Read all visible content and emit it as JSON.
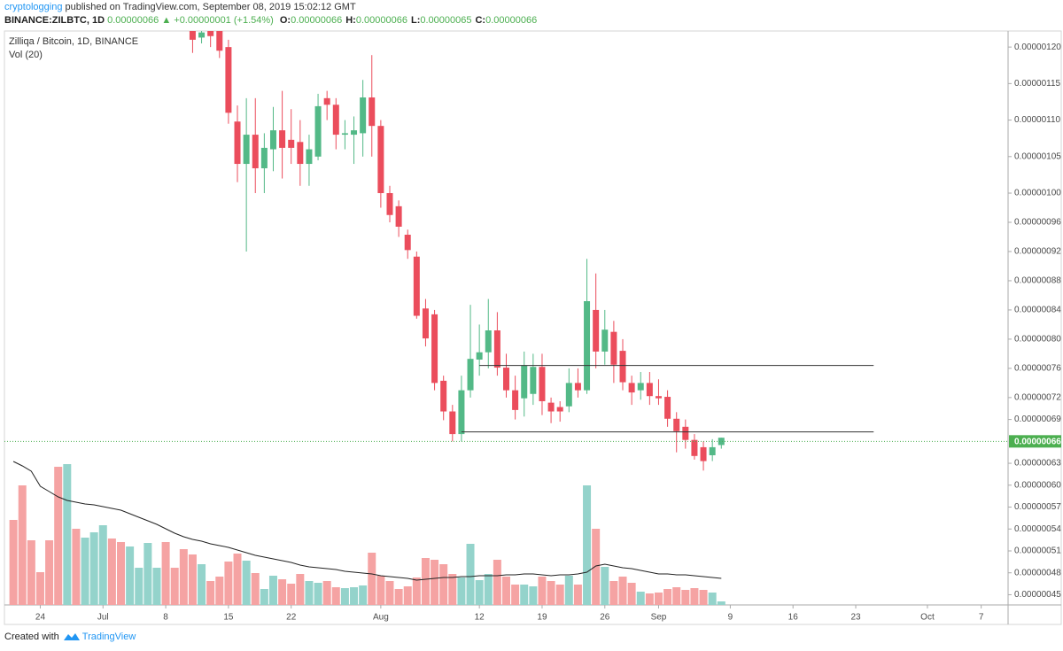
{
  "header": {
    "user": "cryptologging",
    "published": "published on TradingView.com, September 08, 2019 15:02:12 GMT",
    "symbol": "BINANCE:ZILBTC, 1D",
    "last": "0.00000066",
    "arrow": "▲",
    "change": "+0.00000001 (+1.54%)",
    "ohlc": [
      {
        "key": "O:",
        "value": "0.00000066"
      },
      {
        "key": "H:",
        "value": "0.00000066"
      },
      {
        "key": "L:",
        "value": "0.00000065"
      },
      {
        "key": "C:",
        "value": "0.00000066"
      }
    ]
  },
  "footer": {
    "text": "Created with",
    "brand": "TradingView"
  },
  "chart_data": {
    "type": "candlestick",
    "title": "Zilliqa / Bitcoin, 1D, BINANCE",
    "volume_label": "Vol (20)",
    "up_color": "#53b987",
    "down_color": "#eb4d5c",
    "volume_up_color": "#94d3cb",
    "volume_down_color": "#f5a3a3",
    "volume_ma_color": "#222222",
    "grid": false,
    "x": [
      "2019-06-21",
      "2019-06-22",
      "2019-06-23",
      "2019-06-24",
      "2019-06-25",
      "2019-06-26",
      "2019-06-27",
      "2019-06-28",
      "2019-06-29",
      "2019-06-30",
      "2019-07-01",
      "2019-07-02",
      "2019-07-03",
      "2019-07-04",
      "2019-07-05",
      "2019-07-06",
      "2019-07-07",
      "2019-07-08",
      "2019-07-09",
      "2019-07-10",
      "2019-07-11",
      "2019-07-12",
      "2019-07-13",
      "2019-07-14",
      "2019-07-15",
      "2019-07-16",
      "2019-07-17",
      "2019-07-18",
      "2019-07-19",
      "2019-07-20",
      "2019-07-21",
      "2019-07-22",
      "2019-07-23",
      "2019-07-24",
      "2019-07-25",
      "2019-07-26",
      "2019-07-27",
      "2019-07-28",
      "2019-07-29",
      "2019-07-30",
      "2019-07-31",
      "2019-08-01",
      "2019-08-02",
      "2019-08-03",
      "2019-08-04",
      "2019-08-05",
      "2019-08-06",
      "2019-08-07",
      "2019-08-08",
      "2019-08-09",
      "2019-08-10",
      "2019-08-11",
      "2019-08-12",
      "2019-08-13",
      "2019-08-14",
      "2019-08-15",
      "2019-08-16",
      "2019-08-17",
      "2019-08-18",
      "2019-08-19",
      "2019-08-20",
      "2019-08-21",
      "2019-08-22",
      "2019-08-23",
      "2019-08-24",
      "2019-08-25",
      "2019-08-26",
      "2019-08-27",
      "2019-08-28",
      "2019-08-29",
      "2019-08-30",
      "2019-08-31",
      "2019-09-01",
      "2019-09-02",
      "2019-09-03",
      "2019-09-04",
      "2019-09-05",
      "2019-09-06",
      "2019-09-07",
      "2019-09-08"
    ],
    "open": [
      null,
      null,
      null,
      null,
      null,
      null,
      null,
      null,
      null,
      null,
      null,
      null,
      null,
      null,
      null,
      null,
      null,
      null,
      null,
      null,
      1.23e-06,
      1.213e-06,
      1.225e-06,
      1.23e-06,
      1.2e-06,
      1.098e-06,
      1.04e-06,
      1.08e-06,
      1.034e-06,
      1.06e-06,
      1.086e-06,
      1.073e-06,
      1.07e-06,
      1.04e-06,
      1.05e-06,
      1.13e-06,
      1.121e-06,
      1.08e-06,
      1.08e-06,
      1.082e-06,
      1.131e-06,
      1.092e-06,
      1e-06,
      9.82e-07,
      9.43e-07,
      9.13e-07,
      8.42e-07,
      8.34e-07,
      7.43e-07,
      7.01e-07,
      6.7e-07,
      7.3e-07,
      7.72e-07,
      7.82e-07,
      8.12e-07,
      7.61e-07,
      7.3e-07,
      7.19e-07,
      7.25e-07,
      7.62e-07,
      7.13e-07,
      7.07e-07,
      7.08e-07,
      7.4e-07,
      7.3e-07,
      8.4e-07,
      7.83e-07,
      8.1e-07,
      7.84e-07,
      7.4e-07,
      7.3e-07,
      7.4e-07,
      7.22e-07,
      7.21e-07,
      6.91e-07,
      6.8e-07,
      6.62e-07,
      6.52e-07,
      6.41e-07,
      6.55e-07
    ],
    "high": [
      null,
      null,
      null,
      null,
      null,
      null,
      null,
      null,
      null,
      null,
      null,
      null,
      null,
      null,
      null,
      null,
      null,
      null,
      null,
      null,
      1.235e-06,
      1.23e-06,
      1.24e-06,
      1.24e-06,
      1.21e-06,
      1.12e-06,
      1.13e-06,
      1.13e-06,
      1.082e-06,
      1.118e-06,
      1.14e-06,
      1.115e-06,
      1.1e-06,
      1.08e-06,
      1.136e-06,
      1.14e-06,
      1.13e-06,
      1.1e-06,
      1.105e-06,
      1.155e-06,
      1.189e-06,
      1.1e-06,
      1.01e-06,
      9.9e-07,
      9.5e-07,
      9.2e-07,
      8.55e-07,
      8.4e-07,
      7.5e-07,
      7.1e-07,
      7.5e-07,
      8.47e-07,
      8.2e-07,
      8.55e-07,
      8.37e-07,
      7.8e-07,
      7.5e-07,
      7.83e-07,
      7.8e-07,
      7.8e-07,
      7.2e-07,
      7.15e-07,
      7.6e-07,
      7.6e-07,
      9.1e-07,
      8.9e-07,
      8.4e-07,
      8.25e-07,
      8e-07,
      7.5e-07,
      7.55e-07,
      7.55e-07,
      7.45e-07,
      7.3e-07,
      7e-07,
      6.9e-07,
      6.7e-07,
      6.6e-07,
      6.63e-07,
      6.65e-07
    ],
    "low": [
      null,
      null,
      null,
      null,
      null,
      null,
      null,
      null,
      null,
      null,
      null,
      null,
      null,
      null,
      null,
      null,
      null,
      null,
      null,
      null,
      1.192e-06,
      1.205e-06,
      1.2e-06,
      1.185e-06,
      1.095e-06,
      1.015e-06,
      9.2e-07,
      1e-06,
      1e-06,
      1.03e-06,
      1.02e-06,
      1.04e-06,
      1.01e-06,
      1.01e-06,
      1.045e-06,
      1.1e-06,
      1.06e-06,
      1.06e-06,
      1.04e-06,
      1.05e-06,
      1.05e-06,
      9.8e-07,
      9.6e-07,
      9.4e-07,
      9.1e-07,
      8.28e-07,
      7.9e-07,
      7.3e-07,
      6.89e-07,
      6.6e-07,
      6.6e-07,
      7.2e-07,
      7.5e-07,
      7.6e-07,
      7.5e-07,
      7.2e-07,
      6.9e-07,
      6.94e-07,
      7.1e-07,
      6.96e-07,
      6.85e-07,
      6.87e-07,
      7e-07,
      7.2e-07,
      7.25e-07,
      7.6e-07,
      7.65e-07,
      7.4e-07,
      7.3e-07,
      7.1e-07,
      7.17e-07,
      7.1e-07,
      7.1e-07,
      6.8e-07,
      6.45e-07,
      6.5e-07,
      6.35e-07,
      6.2e-07,
      6.33e-07,
      6.5e-07
    ],
    "close": [
      null,
      null,
      null,
      null,
      null,
      null,
      null,
      null,
      null,
      null,
      null,
      null,
      null,
      null,
      null,
      null,
      null,
      null,
      null,
      null,
      1.21e-06,
      1.22e-06,
      1.215e-06,
      1.195e-06,
      1.11e-06,
      1.04e-06,
      1.08e-06,
      1.034e-06,
      1.062e-06,
      1.086e-06,
      1.062e-06,
      1.062e-06,
      1.04e-06,
      1.06e-06,
      1.119e-06,
      1.121e-06,
      1.08e-06,
      1.082e-06,
      1.086e-06,
      1.131e-06,
      1.092e-06,
      1e-06,
      9.7e-07,
      9.54e-07,
      9.22e-07,
      8.32e-07,
      8.01e-07,
      7.4e-07,
      7.01e-07,
      6.7e-07,
      7.3e-07,
      7.73e-07,
      7.82e-07,
      8.12e-07,
      7.61e-07,
      7.3e-07,
      7.03e-07,
      7.64e-07,
      7.62e-07,
      7.15e-07,
      7.01e-07,
      7.01e-07,
      7.4e-07,
      7.3e-07,
      8.52e-07,
      7.83e-07,
      8.13e-07,
      7.65e-07,
      7.41e-07,
      7.27e-07,
      7.4e-07,
      7.22e-07,
      7.19e-07,
      6.91e-07,
      6.74e-07,
      6.62e-07,
      6.4e-07,
      6.33e-07,
      6.52e-07,
      6.65e-07
    ],
    "volume": [
      96,
      135,
      73,
      37,
      73,
      156,
      159,
      86,
      76,
      82,
      90,
      75,
      71,
      66,
      42,
      70,
      42,
      71,
      42,
      63,
      57,
      46,
      27,
      32,
      49,
      58,
      50,
      36,
      18,
      33,
      29,
      24,
      35,
      27,
      25,
      27,
      20,
      19,
      20,
      22,
      59,
      33,
      27,
      18,
      21,
      31,
      53,
      51,
      46,
      35,
      31,
      69,
      28,
      35,
      51,
      32,
      23,
      23,
      21,
      32,
      27,
      23,
      33,
      23,
      135,
      86,
      43,
      27,
      32,
      25,
      15,
      13,
      14,
      18,
      20,
      17,
      19,
      17,
      14,
      4
    ],
    "volume_up": [
      false,
      false,
      false,
      false,
      false,
      false,
      true,
      false,
      true,
      true,
      true,
      false,
      false,
      true,
      true,
      true,
      true,
      false,
      false,
      false,
      false,
      true,
      false,
      false,
      false,
      false,
      true,
      false,
      true,
      true,
      false,
      false,
      false,
      true,
      true,
      false,
      false,
      true,
      true,
      true,
      false,
      false,
      false,
      false,
      false,
      false,
      false,
      false,
      false,
      false,
      true,
      true,
      true,
      true,
      false,
      false,
      false,
      true,
      true,
      false,
      false,
      false,
      true,
      false,
      true,
      false,
      true,
      false,
      false,
      false,
      true,
      false,
      false,
      false,
      false,
      false,
      false,
      false,
      true,
      true
    ],
    "volume_ma": [
      162,
      157,
      151,
      134,
      128,
      122,
      118,
      116,
      114,
      113,
      111,
      109,
      107,
      103,
      99,
      95,
      91,
      86,
      81,
      77,
      74,
      72,
      69,
      67,
      65,
      62,
      59,
      56,
      54,
      52,
      50,
      48,
      45,
      43,
      42,
      41,
      40,
      38,
      37,
      36,
      35,
      33,
      32,
      31,
      30,
      28,
      29,
      30,
      31,
      31,
      32,
      32,
      33,
      33,
      33,
      34,
      34,
      35,
      35,
      34,
      33,
      34,
      34,
      35,
      37,
      44,
      46,
      44,
      42,
      41,
      39,
      37,
      35,
      35,
      34,
      34,
      33,
      32,
      31,
      30
    ],
    "volume_lim": [
      0,
      648
    ],
    "xlim": [
      "2019-06-20",
      "2019-10-10"
    ],
    "xticks": [
      {
        "value": "2019-06-24",
        "label": "24"
      },
      {
        "value": "2019-07-01",
        "label": "Jul"
      },
      {
        "value": "2019-07-08",
        "label": "8"
      },
      {
        "value": "2019-07-15",
        "label": "15"
      },
      {
        "value": "2019-07-22",
        "label": "22"
      },
      {
        "value": "2019-08-01",
        "label": "Aug"
      },
      {
        "value": "2019-08-12",
        "label": "12"
      },
      {
        "value": "2019-08-19",
        "label": "19"
      },
      {
        "value": "2019-08-26",
        "label": "26"
      },
      {
        "value": "2019-09-01",
        "label": "Sep"
      },
      {
        "value": "2019-09-09",
        "label": "9"
      },
      {
        "value": "2019-09-16",
        "label": "16"
      },
      {
        "value": "2019-09-23",
        "label": "23"
      },
      {
        "value": "2019-10-01",
        "label": "Oct"
      },
      {
        "value": "2019-10-07",
        "label": "7"
      }
    ],
    "ylim": [
      4.36e-07,
      1.222e-06
    ],
    "yticks": [
      {
        "value": 1.2e-06,
        "label": "0.00000120"
      },
      {
        "value": 1.15e-06,
        "label": "0.00000115"
      },
      {
        "value": 1.1e-06,
        "label": "0.00000110"
      },
      {
        "value": 1.05e-06,
        "label": "0.00000105"
      },
      {
        "value": 1e-06,
        "label": "0.00000100"
      },
      {
        "value": 9.6e-07,
        "label": "0.00000096"
      },
      {
        "value": 9.2e-07,
        "label": "0.00000092"
      },
      {
        "value": 8.8e-07,
        "label": "0.00000088"
      },
      {
        "value": 8.4e-07,
        "label": "0.00000084"
      },
      {
        "value": 8e-07,
        "label": "0.00000080"
      },
      {
        "value": 7.6e-07,
        "label": "0.00000076"
      },
      {
        "value": 7.2e-07,
        "label": "0.00000072"
      },
      {
        "value": 6.9e-07,
        "label": "0.00000069"
      },
      {
        "value": 6.3e-07,
        "label": "0.00000063"
      },
      {
        "value": 6e-07,
        "label": "0.00000060"
      },
      {
        "value": 5.7e-07,
        "label": "0.00000057"
      },
      {
        "value": 5.4e-07,
        "label": "0.00000054"
      },
      {
        "value": 5.1e-07,
        "label": "0.00000051"
      },
      {
        "value": 4.8e-07,
        "label": "0.00000048"
      },
      {
        "value": 4.5e-07,
        "label": "0.00000045"
      }
    ],
    "last_price": {
      "value": 6.6e-07,
      "label": "0.00000066",
      "color": "#4caf50"
    },
    "drawings": [
      {
        "value": 7.64e-07,
        "from": "2019-08-12",
        "to": "2019-09-25"
      },
      {
        "value": 6.73e-07,
        "from": "2019-08-10",
        "to": "2019-09-25"
      }
    ]
  }
}
